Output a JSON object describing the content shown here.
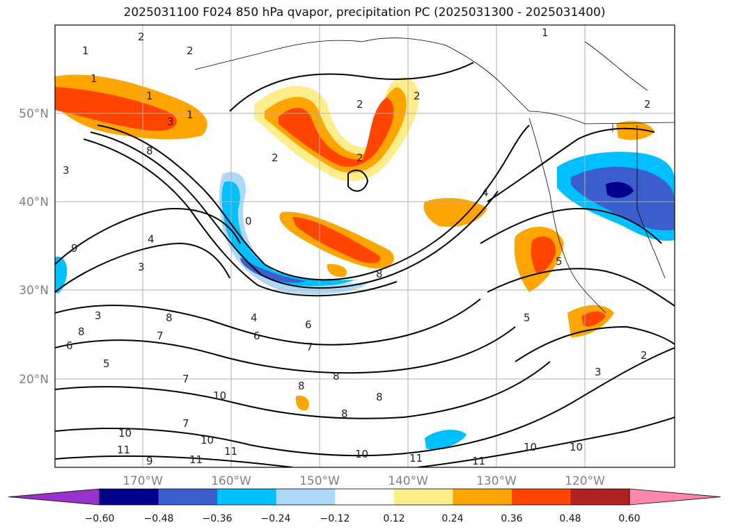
{
  "title": "2025031100 F024 850 hPa qvapor, precipitation PC (2025031300 - 2025031400)",
  "map": {
    "lat_labels": [
      "50°N",
      "40°N",
      "30°N",
      "20°N"
    ],
    "lon_labels": [
      "170°W",
      "160°W",
      "150°W",
      "140°W",
      "130°W",
      "120°W"
    ],
    "axis_label_color": "#808080",
    "contour_labels": [
      "2",
      "1",
      "2",
      "1",
      "1",
      "3",
      "2",
      "2",
      "1",
      "2",
      "2",
      "3",
      "8",
      "2",
      "4",
      "0",
      "9",
      "4",
      "3",
      "5",
      "8",
      "6",
      "3",
      "7",
      "8",
      "6",
      "7",
      "8",
      "7",
      "10",
      "8",
      "8",
      "10",
      "10",
      "11",
      "9",
      "11",
      "11",
      "10",
      "11",
      "11",
      "10",
      "10",
      "8",
      "5",
      "3",
      "2",
      "1",
      "8",
      "7",
      "6",
      "5",
      "4"
    ]
  },
  "colorbar": {
    "ticks": [
      "−0.60",
      "−0.48",
      "−0.36",
      "−0.24",
      "−0.12",
      "0.12",
      "0.24",
      "0.36",
      "0.48",
      "0.60"
    ],
    "colors": [
      "#9932cc",
      "#00008b",
      "#3a5fcd",
      "#00bfff",
      "#add8f7",
      "#ffffff",
      "#ffec8b",
      "#ffa500",
      "#ff4500",
      "#b22222",
      "#ff88aa"
    ]
  }
}
